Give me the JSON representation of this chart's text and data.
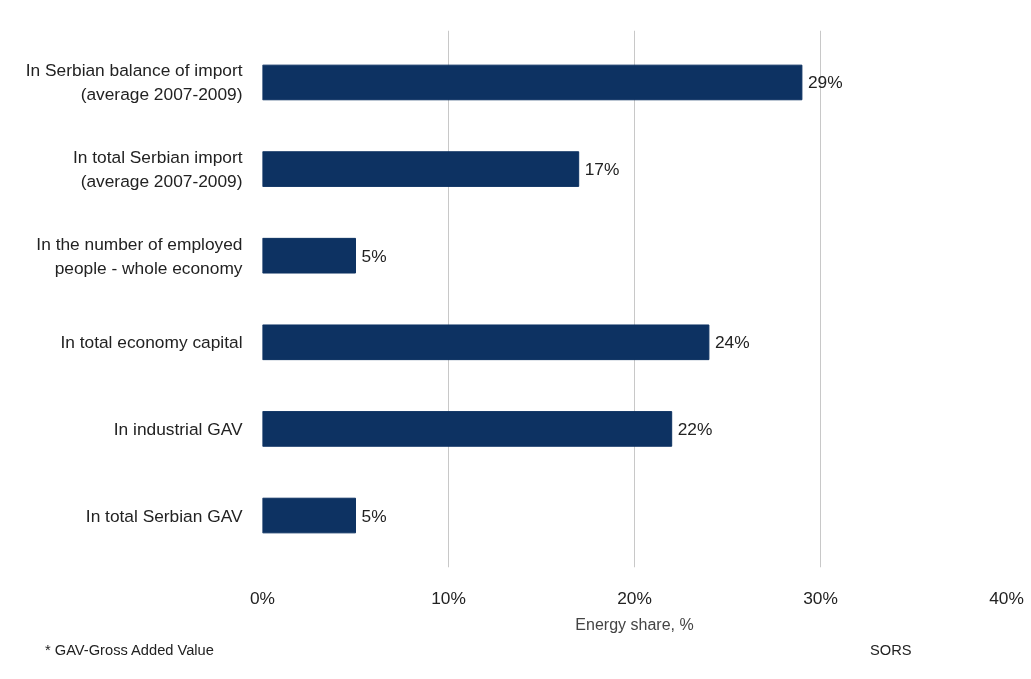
{
  "chart_data": {
    "type": "bar",
    "orientation": "horizontal",
    "categories": [
      "In Serbian balance of import\n(average 2007-2009)",
      "In total Serbian import\n(average 2007-2009)",
      "In the number of employed\npeople - whole economy",
      "In total economy capital",
      "In industrial GAV",
      "In total Serbian GAV"
    ],
    "values": [
      29,
      17,
      5,
      24,
      22,
      5
    ],
    "value_labels": [
      "29%",
      "17%",
      "5%",
      "24%",
      "22%",
      "5%"
    ],
    "color": "#0d3262",
    "xlabel": "Energy share, %",
    "xlim": [
      0,
      40
    ],
    "xticks": [
      {
        "value": 0,
        "label": "0%"
      },
      {
        "value": 10,
        "label": "10%"
      },
      {
        "value": 20,
        "label": "20%"
      },
      {
        "value": 30,
        "label": "30%"
      },
      {
        "value": 40,
        "label": "40%"
      }
    ],
    "grid": "x",
    "annotations": [
      "* GAV-Gross Added Value",
      "SORS"
    ]
  }
}
